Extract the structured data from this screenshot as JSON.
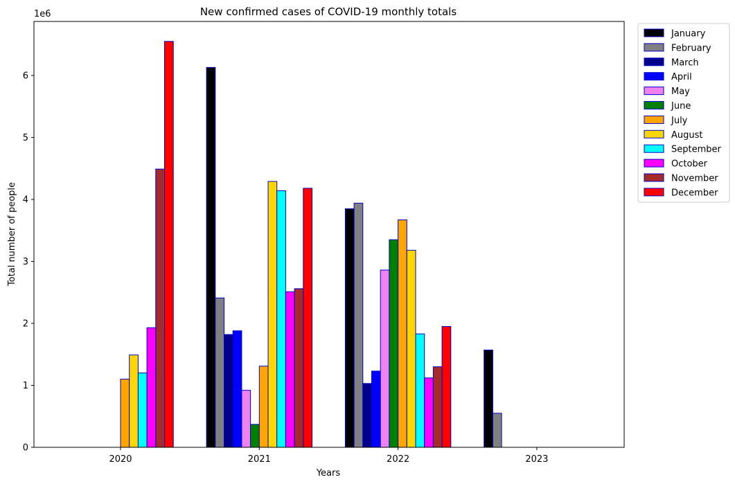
{
  "chart_data": {
    "type": "bar",
    "title": "New confirmed cases of COVID-19 monthly totals",
    "xlabel": "Years",
    "ylabel": "Total number of people",
    "y_offset_label": "1e6",
    "categories": [
      "2020",
      "2021",
      "2022",
      "2023"
    ],
    "ylim": [
      0,
      6900000
    ],
    "yticks": [
      0,
      1000000,
      2000000,
      3000000,
      4000000,
      5000000,
      6000000
    ],
    "ytick_labels": [
      "0",
      "1",
      "2",
      "3",
      "4",
      "5",
      "6"
    ],
    "grid": false,
    "legend_position": "outside-top-right",
    "bar_edge_color": "#0000cc",
    "series": [
      {
        "name": "January",
        "color": "#000000",
        "values": [
          0,
          6130000,
          3850000,
          1570000
        ]
      },
      {
        "name": "February",
        "color": "#808080",
        "values": [
          0,
          2410000,
          3940000,
          550000
        ]
      },
      {
        "name": "March",
        "color": "#00008b",
        "values": [
          0,
          1820000,
          1030000,
          0
        ]
      },
      {
        "name": "April",
        "color": "#0000ff",
        "values": [
          0,
          1880000,
          1230000,
          0
        ]
      },
      {
        "name": "May",
        "color": "#ee82ee",
        "values": [
          0,
          920000,
          2860000,
          0
        ]
      },
      {
        "name": "June",
        "color": "#008000",
        "values": [
          0,
          370000,
          3350000,
          0
        ]
      },
      {
        "name": "July",
        "color": "#ffa500",
        "values": [
          1100000,
          1310000,
          3670000,
          0
        ]
      },
      {
        "name": "August",
        "color": "#ffd700",
        "values": [
          1490000,
          4290000,
          3180000,
          0
        ]
      },
      {
        "name": "September",
        "color": "#00ffff",
        "values": [
          1200000,
          4140000,
          1830000,
          0
        ]
      },
      {
        "name": "October",
        "color": "#ff00ff",
        "values": [
          1930000,
          2510000,
          1120000,
          0
        ]
      },
      {
        "name": "November",
        "color": "#a52a2a",
        "values": [
          4490000,
          2560000,
          1300000,
          0
        ]
      },
      {
        "name": "December",
        "color": "#ff0000",
        "values": [
          6550000,
          4180000,
          1950000,
          0
        ]
      }
    ]
  }
}
